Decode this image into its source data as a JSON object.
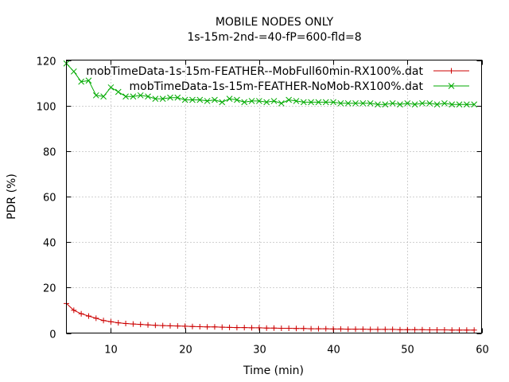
{
  "chart_data": {
    "type": "line",
    "title": "MOBILE NODES ONLY",
    "subtitle": "1s-15m-2nd-=40-fP=600-fld=8",
    "xlabel": "Time (min)",
    "ylabel": "PDR (%)",
    "xlim": [
      4,
      60
    ],
    "ylim": [
      0,
      120
    ],
    "xticks": [
      10,
      20,
      30,
      40,
      50,
      60
    ],
    "yticks": [
      0,
      20,
      40,
      60,
      80,
      100,
      120
    ],
    "grid": true,
    "legend_position": "top-right",
    "series": [
      {
        "name": "mobTimeData-1s-15m-FEATHER--MobFull60min-RX100%.dat",
        "color": "#cc0000",
        "marker": "plus",
        "x": [
          4,
          5,
          6,
          7,
          8,
          9,
          10,
          11,
          12,
          13,
          14,
          15,
          16,
          17,
          18,
          19,
          20,
          21,
          22,
          23,
          24,
          25,
          26,
          27,
          28,
          29,
          30,
          31,
          32,
          33,
          34,
          35,
          36,
          37,
          38,
          39,
          40,
          41,
          42,
          43,
          44,
          45,
          46,
          47,
          48,
          49,
          50,
          51,
          52,
          53,
          54,
          55,
          56,
          57,
          58,
          59
        ],
        "y": [
          13,
          10,
          8.5,
          7.5,
          6.5,
          5.5,
          5,
          4.5,
          4.2,
          4,
          3.8,
          3.6,
          3.4,
          3.3,
          3.2,
          3.1,
          3,
          2.9,
          2.8,
          2.7,
          2.7,
          2.6,
          2.5,
          2.4,
          2.4,
          2.3,
          2.3,
          2.2,
          2.2,
          2.1,
          2.1,
          2,
          2,
          1.9,
          1.9,
          1.9,
          1.8,
          1.8,
          1.7,
          1.7,
          1.7,
          1.6,
          1.6,
          1.6,
          1.6,
          1.5,
          1.5,
          1.5,
          1.5,
          1.4,
          1.4,
          1.4,
          1.3,
          1.3,
          1.3,
          1.3
        ]
      },
      {
        "name": "mobTimeData-1s-15m-FEATHER-NoMob-RX100%.dat",
        "color": "#00aa00",
        "marker": "cross",
        "x": [
          4,
          5,
          6,
          7,
          8,
          9,
          10,
          11,
          12,
          13,
          14,
          15,
          16,
          17,
          18,
          19,
          20,
          21,
          22,
          23,
          24,
          25,
          26,
          27,
          28,
          29,
          30,
          31,
          32,
          33,
          34,
          35,
          36,
          37,
          38,
          39,
          40,
          41,
          42,
          43,
          44,
          45,
          46,
          47,
          48,
          49,
          50,
          51,
          52,
          53,
          54,
          55,
          56,
          57,
          58,
          59
        ],
        "y": [
          118.5,
          115,
          110.5,
          111,
          104.5,
          104,
          108,
          106,
          104,
          104,
          104.5,
          104,
          103,
          103,
          103.5,
          103.5,
          102.5,
          102.5,
          102.5,
          102,
          102.5,
          101.5,
          103,
          102.5,
          101.5,
          102,
          102,
          101.5,
          102,
          101,
          102.5,
          102,
          101.5,
          101.5,
          101.5,
          101.5,
          101.5,
          101,
          101,
          101,
          101,
          101,
          100.5,
          100.5,
          101,
          100.5,
          101,
          100.5,
          101,
          101,
          100.5,
          101,
          100.5,
          100.5,
          100.5,
          100.5
        ]
      }
    ]
  }
}
